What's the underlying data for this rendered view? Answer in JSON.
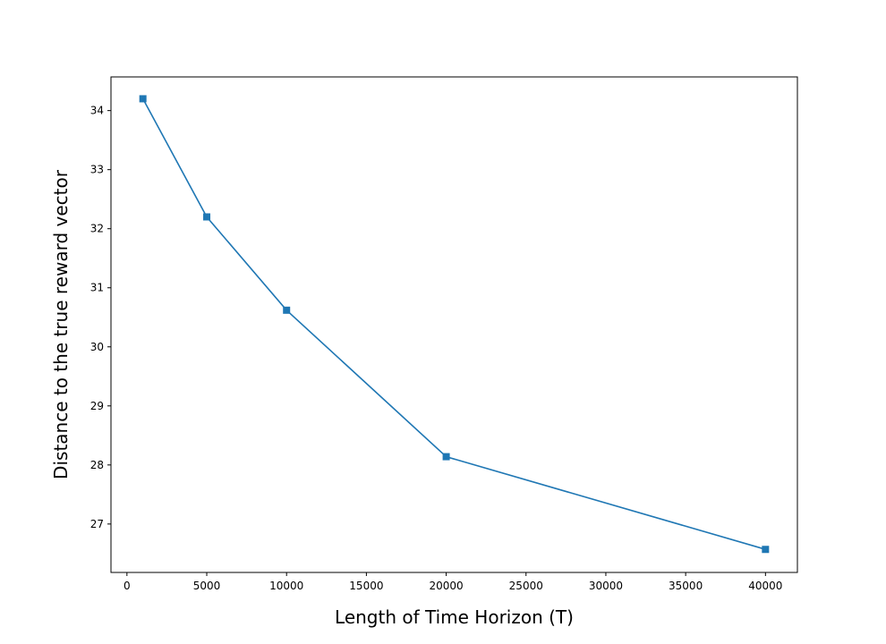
{
  "chart_data": {
    "type": "line",
    "title": "",
    "xlabel": "Length of Time Horizon (T)",
    "ylabel": "Distance to the true reward vector",
    "xlim": [
      -1000,
      42000
    ],
    "ylim": [
      26.18,
      34.57
    ],
    "x_ticks": [
      0,
      5000,
      10000,
      15000,
      20000,
      25000,
      30000,
      35000,
      40000
    ],
    "y_ticks": [
      27,
      28,
      29,
      30,
      31,
      32,
      33,
      34
    ],
    "grid": false,
    "legend": "none",
    "series": [
      {
        "color": "#1f77b4",
        "marker": "square",
        "x": [
          1000,
          5000,
          10000,
          20000,
          40000
        ],
        "y": [
          34.2,
          32.2,
          30.62,
          28.14,
          26.57
        ]
      }
    ]
  }
}
